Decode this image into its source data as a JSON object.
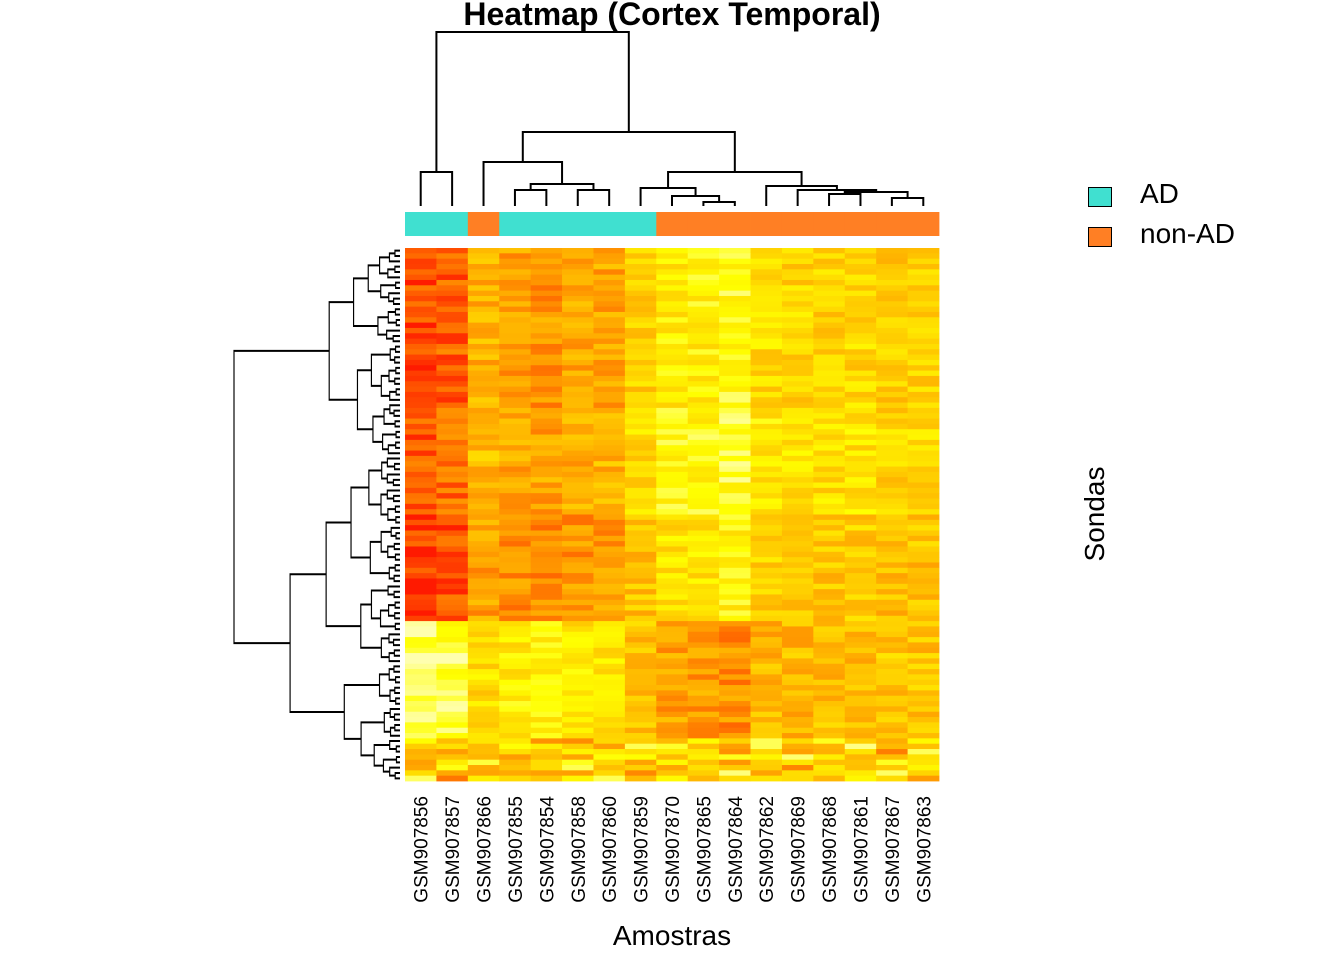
{
  "chart_data": {
    "type": "heatmap",
    "title": "Heatmap (Cortex Temporal)",
    "xlabel": "Amostras",
    "ylabel": "Sondas",
    "columns": [
      "GSM907856",
      "GSM907857",
      "GSM907866",
      "GSM907855",
      "GSM907854",
      "GSM907858",
      "GSM907860",
      "GSM907859",
      "GSM907870",
      "GSM907865",
      "GSM907864",
      "GSM907862",
      "GSM907869",
      "GSM907868",
      "GSM907861",
      "GSM907867",
      "GSM907863"
    ],
    "column_groups": [
      "AD",
      "AD",
      "non-AD",
      "AD",
      "AD",
      "AD",
      "AD",
      "AD",
      "non-AD",
      "non-AD",
      "non-AD",
      "non-AD",
      "non-AD",
      "non-AD",
      "non-AD",
      "non-AD",
      "non-AD"
    ],
    "legend": [
      {
        "label": "AD",
        "color": "#40E0D0"
      },
      {
        "label": "non-AD",
        "color": "#FF7F24"
      }
    ],
    "color_scale": [
      "#FF1A00",
      "#FF6A00",
      "#FFA500",
      "#FFD400",
      "#FFFF00",
      "#FFFFB0"
    ],
    "row_count": 100,
    "column_pattern_levels": [
      0.12,
      0.18,
      0.45,
      0.38,
      0.36,
      0.4,
      0.42,
      0.58,
      0.72,
      0.74,
      0.8,
      0.64,
      0.62,
      0.6,
      0.62,
      0.56,
      0.58
    ],
    "row_block_levels": [
      {
        "rows": 30,
        "shift": 0.0
      },
      {
        "rows": 20,
        "shift": 0.05
      },
      {
        "rows": 20,
        "shift": -0.05
      },
      {
        "rows": 22,
        "shift": "inverted"
      },
      {
        "rows": 8,
        "shift": "mixed"
      }
    ]
  }
}
